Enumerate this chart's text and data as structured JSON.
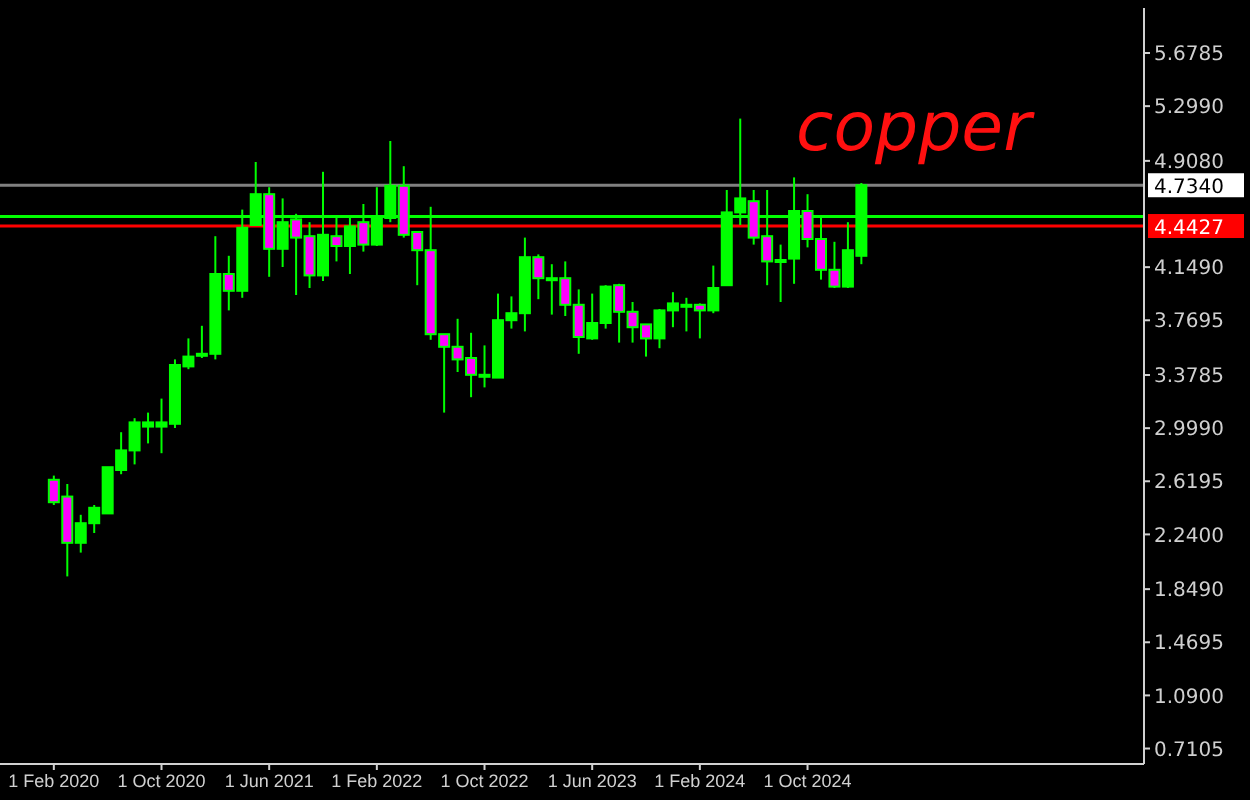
{
  "chart_data": {
    "type": "candlestick",
    "x": [
      "2020-02",
      "2020-03",
      "2020-04",
      "2020-05",
      "2020-06",
      "2020-07",
      "2020-08",
      "2020-09",
      "2020-10",
      "2020-11",
      "2020-12",
      "2021-01",
      "2021-02",
      "2021-03",
      "2021-04",
      "2021-05",
      "2021-06",
      "2021-07",
      "2021-08",
      "2021-09",
      "2021-10",
      "2021-11",
      "2021-12",
      "2022-01",
      "2022-02",
      "2022-03",
      "2022-04",
      "2022-05",
      "2022-06",
      "2022-07",
      "2022-08",
      "2022-09",
      "2022-10",
      "2022-11",
      "2022-12",
      "2023-01",
      "2023-02",
      "2023-03",
      "2023-04",
      "2023-05",
      "2023-06",
      "2023-07",
      "2023-08",
      "2023-09",
      "2023-10",
      "2023-11",
      "2023-12",
      "2024-01",
      "2024-02",
      "2024-03",
      "2024-04",
      "2024-05",
      "2024-06",
      "2024-07",
      "2024-08",
      "2024-09",
      "2024-10",
      "2024-11",
      "2024-12",
      "2025-01",
      "2025-02"
    ],
    "ohlc": [
      [
        2.63,
        2.66,
        2.45,
        2.47
      ],
      [
        2.51,
        2.6,
        1.94,
        2.18
      ],
      [
        2.18,
        2.38,
        2.11,
        2.32
      ],
      [
        2.32,
        2.45,
        2.25,
        2.43
      ],
      [
        2.39,
        2.72,
        2.39,
        2.72
      ],
      [
        2.7,
        2.97,
        2.67,
        2.84
      ],
      [
        2.84,
        3.07,
        2.74,
        3.04
      ],
      [
        3.01,
        3.11,
        2.89,
        3.04
      ],
      [
        3.01,
        3.21,
        2.82,
        3.04
      ],
      [
        3.03,
        3.49,
        3.0,
        3.45
      ],
      [
        3.44,
        3.64,
        3.42,
        3.51
      ],
      [
        3.52,
        3.73,
        3.5,
        3.53
      ],
      [
        3.53,
        4.37,
        3.49,
        4.1
      ],
      [
        4.1,
        4.23,
        3.84,
        3.98
      ],
      [
        3.98,
        4.56,
        3.93,
        4.43
      ],
      [
        4.45,
        4.9,
        4.45,
        4.67
      ],
      [
        4.67,
        4.72,
        4.08,
        4.28
      ],
      [
        4.28,
        4.64,
        4.15,
        4.47
      ],
      [
        4.49,
        4.53,
        3.95,
        4.36
      ],
      [
        4.37,
        4.47,
        4.0,
        4.09
      ],
      [
        4.09,
        4.83,
        4.05,
        4.38
      ],
      [
        4.37,
        4.5,
        4.19,
        4.3
      ],
      [
        4.3,
        4.5,
        4.1,
        4.44
      ],
      [
        4.47,
        4.6,
        4.26,
        4.31
      ],
      [
        4.31,
        4.72,
        4.3,
        4.5
      ],
      [
        4.5,
        5.05,
        4.47,
        4.73
      ],
      [
        4.73,
        4.87,
        4.36,
        4.38
      ],
      [
        4.4,
        4.4,
        4.02,
        4.27
      ],
      [
        4.27,
        4.58,
        3.63,
        3.67
      ],
      [
        3.67,
        3.67,
        3.11,
        3.58
      ],
      [
        3.58,
        3.78,
        3.4,
        3.49
      ],
      [
        3.5,
        3.68,
        3.22,
        3.38
      ],
      [
        3.38,
        3.59,
        3.29,
        3.37
      ],
      [
        3.36,
        3.96,
        3.36,
        3.77
      ],
      [
        3.77,
        3.94,
        3.71,
        3.82
      ],
      [
        3.82,
        4.36,
        3.69,
        4.22
      ],
      [
        4.22,
        4.24,
        3.92,
        4.07
      ],
      [
        4.07,
        4.17,
        3.81,
        4.06
      ],
      [
        4.07,
        4.19,
        3.8,
        3.88
      ],
      [
        3.88,
        3.99,
        3.53,
        3.65
      ],
      [
        3.64,
        3.96,
        3.63,
        3.75
      ],
      [
        3.75,
        4.02,
        3.71,
        4.01
      ],
      [
        4.02,
        4.03,
        3.61,
        3.83
      ],
      [
        3.83,
        3.9,
        3.61,
        3.72
      ],
      [
        3.74,
        3.74,
        3.51,
        3.64
      ],
      [
        3.64,
        3.85,
        3.57,
        3.84
      ],
      [
        3.84,
        3.97,
        3.72,
        3.89
      ],
      [
        3.88,
        3.93,
        3.69,
        3.87
      ],
      [
        3.88,
        3.89,
        3.64,
        3.84
      ],
      [
        3.84,
        4.16,
        3.82,
        4.0
      ],
      [
        4.02,
        4.7,
        4.02,
        4.54
      ],
      [
        4.54,
        5.21,
        4.45,
        4.64
      ],
      [
        4.62,
        4.7,
        4.31,
        4.36
      ],
      [
        4.37,
        4.7,
        4.02,
        4.19
      ],
      [
        4.19,
        4.31,
        3.9,
        4.2
      ],
      [
        4.21,
        4.79,
        4.03,
        4.55
      ],
      [
        4.55,
        4.67,
        4.29,
        4.35
      ],
      [
        4.35,
        4.5,
        4.06,
        4.13
      ],
      [
        4.13,
        4.33,
        4.0,
        4.01
      ],
      [
        4.01,
        4.47,
        4.0,
        4.27
      ],
      [
        4.23,
        4.75,
        4.17,
        4.734
      ]
    ],
    "color": "#00ff00",
    "colors": [
      "#ff00ff",
      "#ff00ff",
      "#00ff00",
      "#00ff00",
      "#00ff00",
      "#00ff00",
      "#00ff00",
      "#00ff00",
      "#00ff00",
      "#00ff00",
      "#00ff00",
      "#00ff00",
      "#00ff00",
      "#ff00ff",
      "#00ff00",
      "#00ff00",
      "#ff00ff",
      "#00ff00",
      "#ff00ff",
      "#ff00ff",
      "#00ff00",
      "#ff00ff",
      "#00ff00",
      "#ff00ff",
      "#00ff00",
      "#00ff00",
      "#ff00ff",
      "#ff00ff",
      "#ff00ff",
      "#ff00ff",
      "#ff00ff",
      "#ff00ff",
      "#00ff00",
      "#00ff00",
      "#00ff00",
      "#00ff00",
      "#ff00ff",
      "#00ff00",
      "#ff00ff",
      "#ff00ff",
      "#00ff00",
      "#00ff00",
      "#ff00ff",
      "#ff00ff",
      "#ff00ff",
      "#00ff00",
      "#00ff00",
      "#00ff00",
      "#ff00ff",
      "#00ff00",
      "#00ff00",
      "#00ff00",
      "#ff00ff",
      "#ff00ff",
      "#00ff00",
      "#00ff00",
      "#ff00ff",
      "#ff00ff",
      "#ff00ff",
      "#00ff00",
      "#00ff00"
    ],
    "xlim": [
      "2019-10",
      "2026-11"
    ],
    "xticks": [
      {
        "value": "2020-02",
        "label": "1 Feb 2020"
      },
      {
        "value": "2020-10",
        "label": "1 Oct 2020"
      },
      {
        "value": "2021-06",
        "label": "1 Jun 2021"
      },
      {
        "value": "2022-02",
        "label": "1 Feb 2022"
      },
      {
        "value": "2022-10",
        "label": "1 Oct 2022"
      },
      {
        "value": "2023-06",
        "label": "1 Jun 2023"
      },
      {
        "value": "2024-02",
        "label": "1 Feb 2024"
      },
      {
        "value": "2024-10",
        "label": "1 Oct 2024"
      }
    ],
    "ylim": [
      0.6,
      6.0
    ],
    "yticks": [
      {
        "value": 0.7105,
        "label": "0.7105"
      },
      {
        "value": 1.09,
        "label": "1.0900"
      },
      {
        "value": 1.4695,
        "label": "1.4695"
      },
      {
        "value": 1.849,
        "label": "1.8490"
      },
      {
        "value": 2.24,
        "label": "2.2400"
      },
      {
        "value": 2.6195,
        "label": "2.6195"
      },
      {
        "value": 2.999,
        "label": "2.9990"
      },
      {
        "value": 3.3785,
        "label": "3.3785"
      },
      {
        "value": 3.7695,
        "label": "3.7695"
      },
      {
        "value": 4.149,
        "label": "4.1490"
      },
      {
        "value": 4.908,
        "label": "4.9080"
      },
      {
        "value": 5.299,
        "label": "5.2990"
      },
      {
        "value": 5.6785,
        "label": "5.6785"
      }
    ],
    "ref_lines": [
      {
        "axis": "y",
        "value": 4.734,
        "label": "4.7340",
        "color": "#808080"
      },
      {
        "axis": "y",
        "value": 4.51,
        "color": "#00ff00"
      },
      {
        "axis": "y",
        "value": 4.4427,
        "label": "4.4427",
        "color": "#ff0000"
      }
    ],
    "annotations": [
      "copper"
    ],
    "grid": false
  }
}
